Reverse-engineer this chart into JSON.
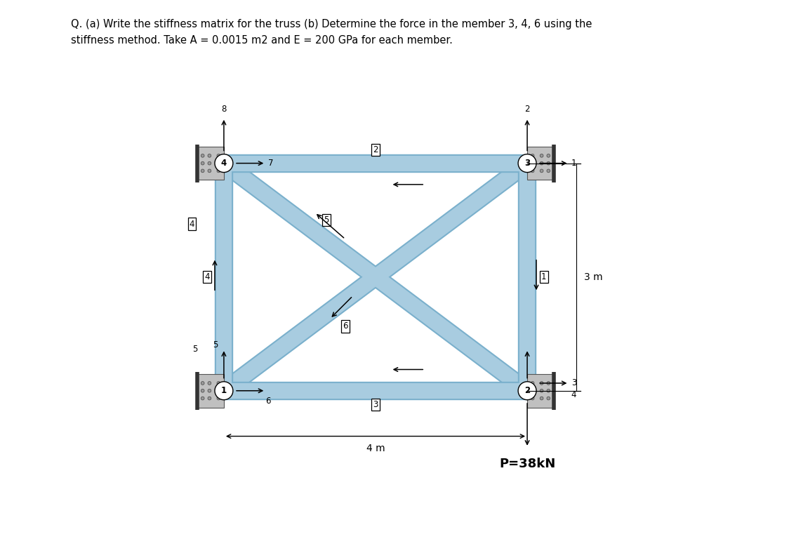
{
  "title_line1": "Q. (a) Write the stiffness matrix for the truss (b) Determine the force in the member 3, 4, 6 using the",
  "title_line2": "stiffness method. Take A = 0.0015 m2 and E = 200 GPa for each member.",
  "bg_color": "#ffffff",
  "truss_fill": "#a8cce0",
  "truss_edge": "#7ab0cc",
  "joint_fill": "#c8c8c8",
  "joint_edge": "#888888",
  "p_label": "P=38kN",
  "dim_4m": "4 m",
  "dim_3m": "3 m",
  "node_labels": [
    "1",
    "2",
    "3",
    "4"
  ],
  "member_labels": [
    "1",
    "2",
    "3",
    "4",
    "5",
    "6"
  ],
  "dof_labels_node4": [
    "7",
    "8"
  ],
  "dof_labels_node3": [
    "1",
    "2"
  ],
  "dof_labels_node2": [
    "3",
    "4"
  ],
  "dof_labels_node1": [
    "5",
    "6"
  ]
}
